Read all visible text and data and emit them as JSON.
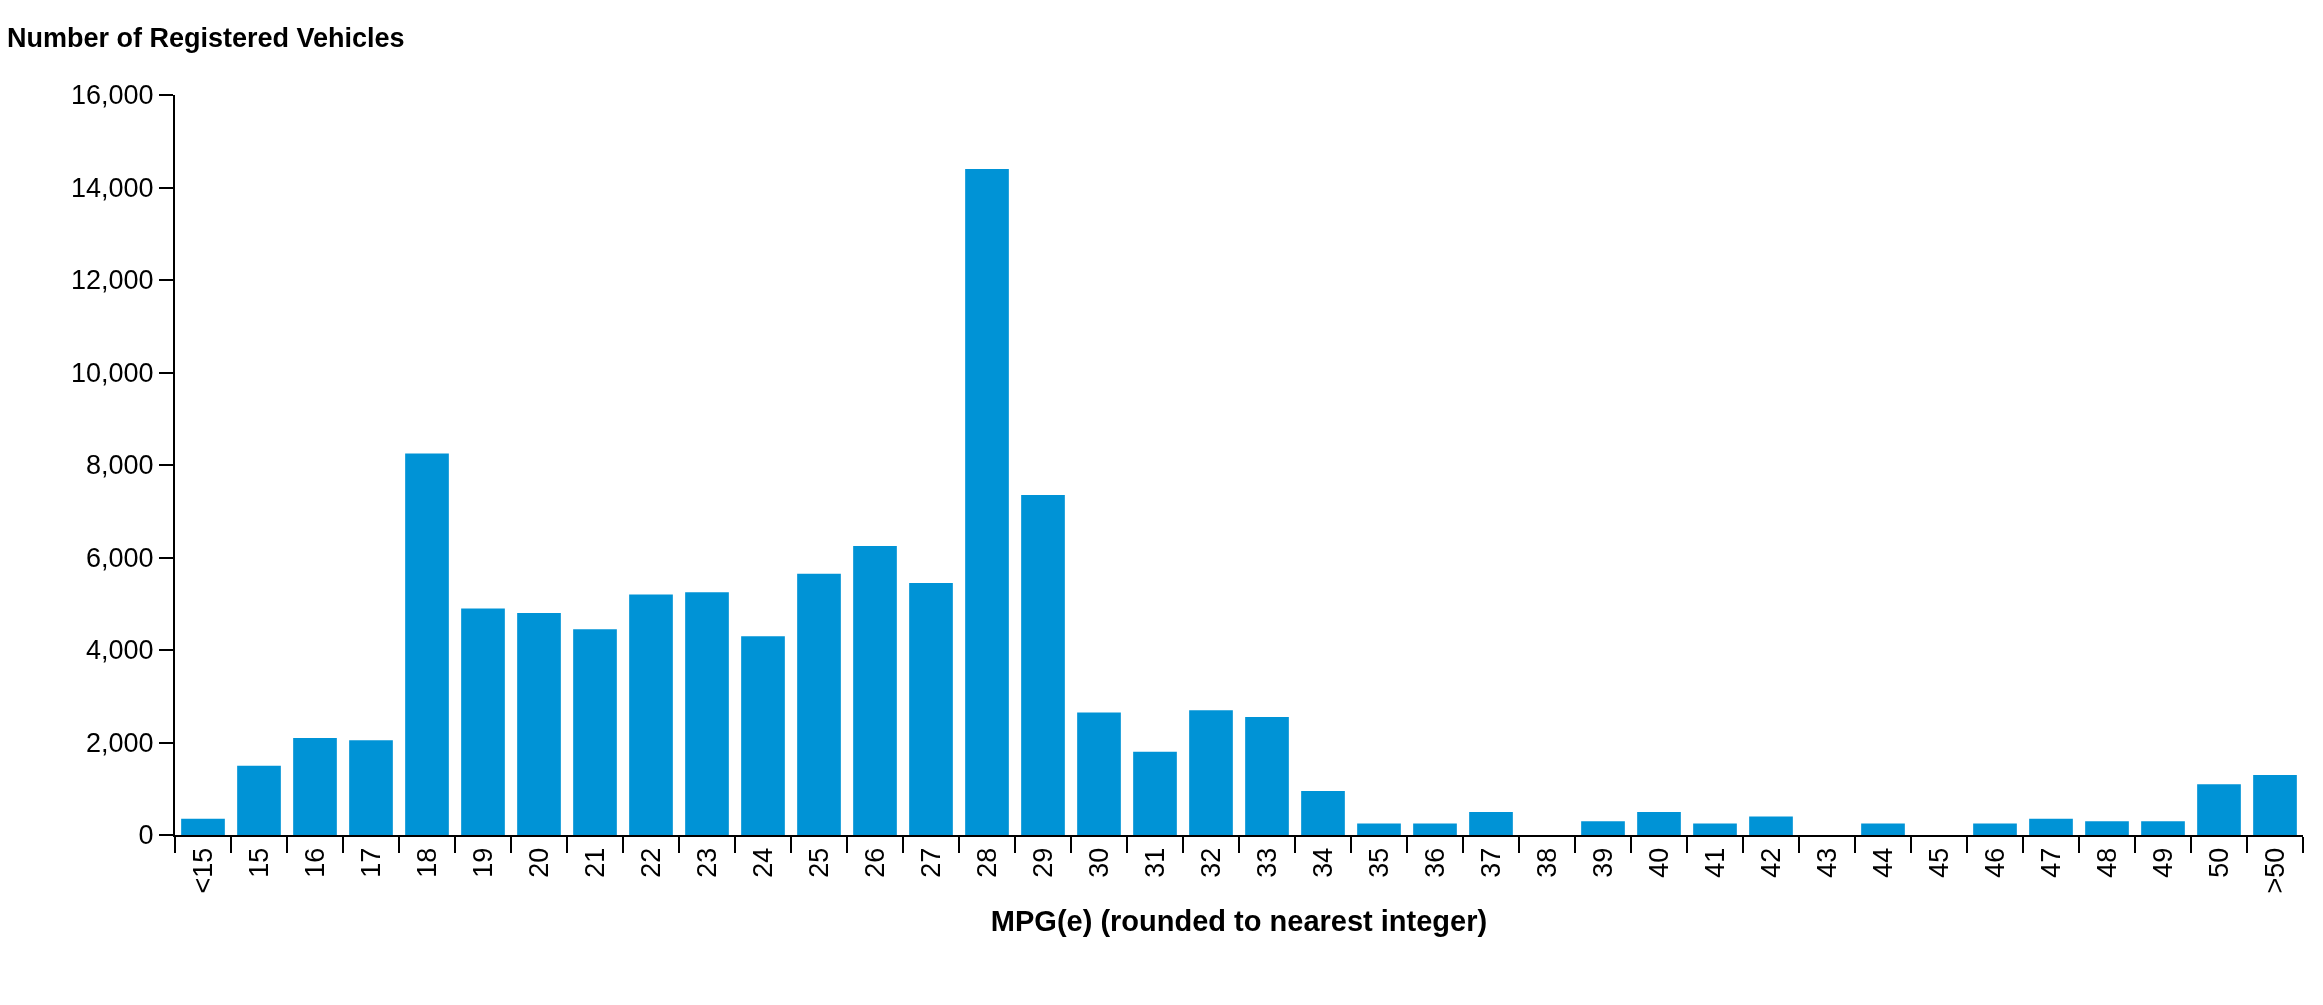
{
  "chart_data": {
    "type": "bar",
    "xlabel": "MPG(e) (rounded to nearest integer)",
    "ylabel": "Number of Registered Vehicles",
    "categories": [
      "<15",
      "15",
      "16",
      "17",
      "18",
      "19",
      "20",
      "21",
      "22",
      "23",
      "24",
      "25",
      "26",
      "27",
      "28",
      "29",
      "30",
      "31",
      "32",
      "33",
      "34",
      "35",
      "36",
      "37",
      "38",
      "39",
      "40",
      "41",
      "42",
      "43",
      "44",
      "45",
      "46",
      "47",
      "48",
      "49",
      "50",
      ">50"
    ],
    "values": [
      350,
      1500,
      2100,
      2050,
      8250,
      4900,
      4800,
      4450,
      5200,
      5250,
      4300,
      5650,
      6250,
      5450,
      14400,
      7350,
      2650,
      1800,
      2700,
      2550,
      950,
      250,
      250,
      500,
      0,
      300,
      500,
      250,
      400,
      0,
      250,
      0,
      250,
      350,
      300,
      300,
      1100,
      1300
    ],
    "color": "#0093d6",
    "ylim": [
      0,
      16000
    ],
    "yticks": [
      {
        "value": 0,
        "label": "0"
      },
      {
        "value": 2000,
        "label": "2,000"
      },
      {
        "value": 4000,
        "label": "4,000"
      },
      {
        "value": 6000,
        "label": "6,000"
      },
      {
        "value": 8000,
        "label": "8,000"
      },
      {
        "value": 10000,
        "label": "10,000"
      },
      {
        "value": 12000,
        "label": "12,000"
      },
      {
        "value": 14000,
        "label": "14,000"
      },
      {
        "value": 16000,
        "label": "16,000"
      }
    ]
  }
}
